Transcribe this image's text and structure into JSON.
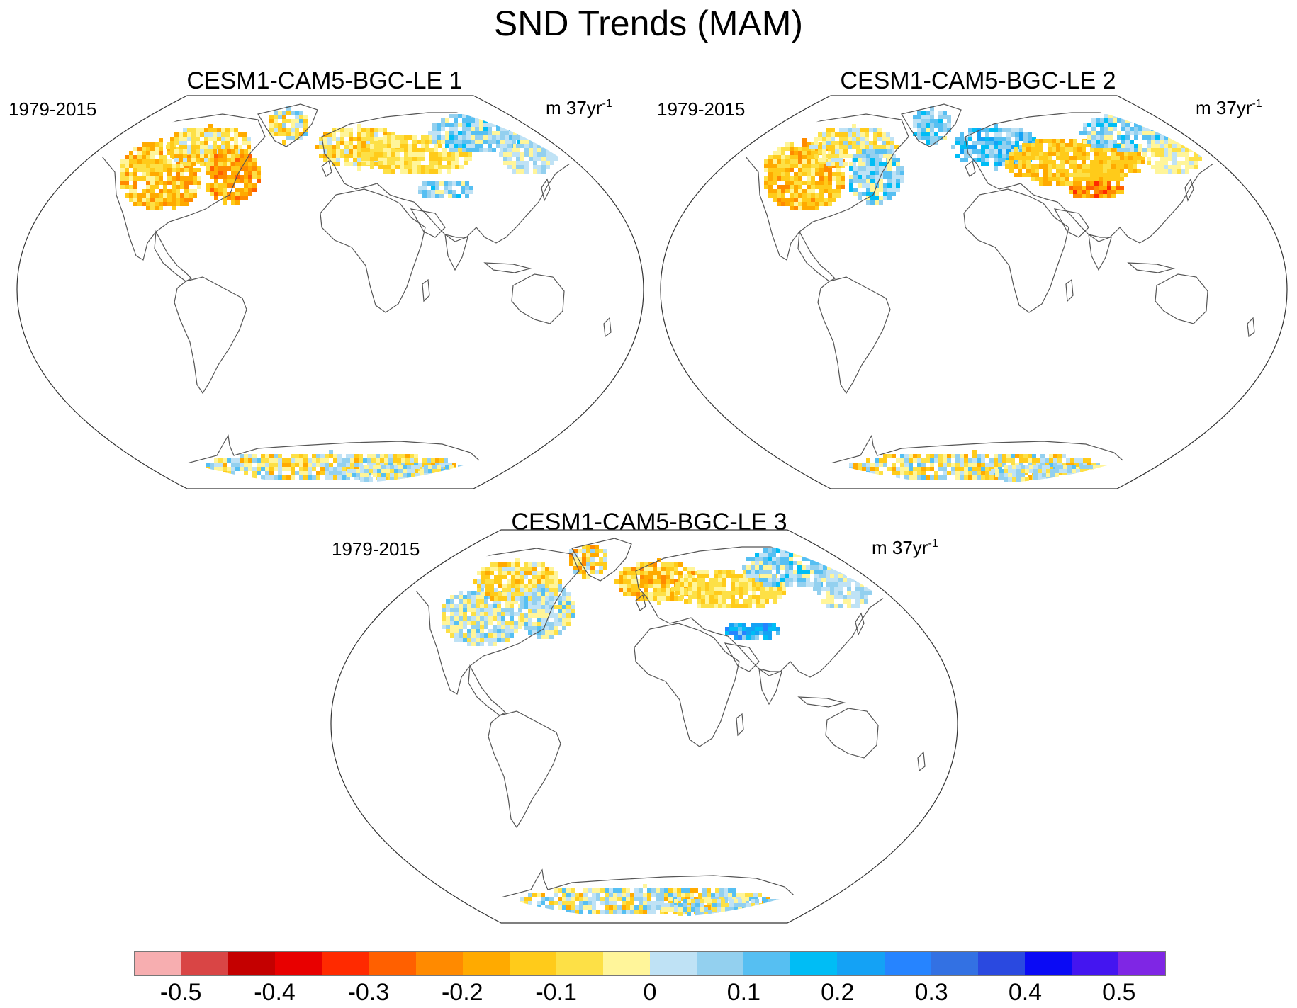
{
  "title": "SND Trends (MAM)",
  "panels": [
    {
      "title": "CESM1-CAM5-BGC-LE 1",
      "period": "1979-2015",
      "units_prefix": "m 37yr",
      "units_exp": "-1"
    },
    {
      "title": "CESM1-CAM5-BGC-LE 2",
      "period": "1979-2015",
      "units_prefix": "m 37yr",
      "units_exp": "-1"
    },
    {
      "title": "CESM1-CAM5-BGC-LE 3",
      "period": "1979-2015",
      "units_prefix": "m 37yr",
      "units_exp": "-1"
    }
  ],
  "colorbar": {
    "colors": [
      "#f7aeb0",
      "#d94545",
      "#c40000",
      "#e80000",
      "#ff2a00",
      "#ff6000",
      "#ff8a00",
      "#ffaa00",
      "#ffcb1a",
      "#fde046",
      "#fff59a",
      "#bfe2f5",
      "#93d0ef",
      "#56bff2",
      "#00bdf5",
      "#14a2f5",
      "#2684ff",
      "#3371e3",
      "#2a49e0",
      "#0a0af5",
      "#4415f0",
      "#7f26e4"
    ],
    "labels": [
      "-0.5",
      "-0.4",
      "-0.3",
      "-0.2",
      "-0.1",
      "0",
      "0.1",
      "0.2",
      "0.3",
      "0.4",
      "0.5"
    ]
  },
  "legend_scale": {
    "min": -0.55,
    "max": 0.55,
    "step": 0.05,
    "units": "m 37yr-1"
  },
  "icons": {
    "map": "robinson-projection-world-map"
  }
}
